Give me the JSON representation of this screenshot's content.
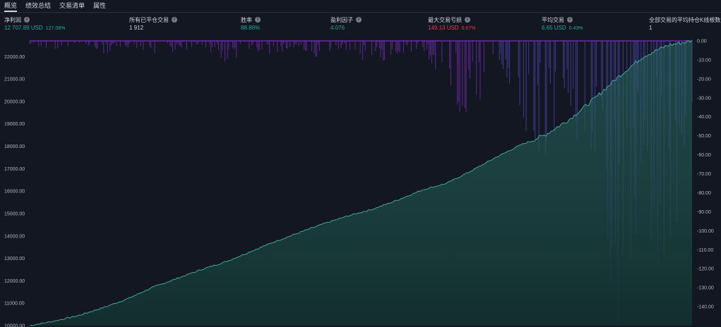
{
  "tabs": [
    {
      "label": "概览",
      "active": true
    },
    {
      "label": "绩效总结",
      "active": false
    },
    {
      "label": "交易清单",
      "active": false
    },
    {
      "label": "属性",
      "active": false
    }
  ],
  "stats": {
    "net_profit": {
      "label": "净利润",
      "value": "12 707.89 USD",
      "pct": "127.08%"
    },
    "closed_trades": {
      "label": "所有已平仓交易",
      "value": "1 912"
    },
    "win_rate": {
      "label": "胜率",
      "value": "88.86%"
    },
    "profit_factor": {
      "label": "盈利因子",
      "value": "4.076"
    },
    "max_drawdown": {
      "label": "最大交易亏损",
      "value": "149.13 USD",
      "pct": "0.67%"
    },
    "avg_trade": {
      "label": "平均交易",
      "value": "6.65 USD",
      "pct": "0.43%"
    },
    "avg_bars": {
      "label": "全部交易的平均持仓K线根数",
      "value": "1"
    }
  },
  "colors": {
    "background": "#131722",
    "equity_line": "#3fa79a",
    "equity_fill": "#1f4a47",
    "drawdown": "#6a2aa6",
    "green": "#26a69a",
    "red": "#f23645"
  },
  "chart_data": {
    "type": "area",
    "left_axis": {
      "ticks": [
        "22000.00",
        "21000.00",
        "20000.00",
        "19000.00",
        "18000.00",
        "17000.00",
        "16000.00",
        "15000.00",
        "14000.00",
        "13000.00",
        "12000.00",
        "11000.00",
        "10000.00"
      ],
      "ylim": [
        10000,
        22700
      ]
    },
    "right_axis": {
      "ticks": [
        "0.00",
        "-10.00",
        "-20.00",
        "-30.00",
        "-40.00",
        "-50.00",
        "-60.00",
        "-70.00",
        "-80.00",
        "-90.00",
        "-100.00",
        "-110.00",
        "-120.00",
        "-130.00",
        "-140.00"
      ],
      "ylim": [
        -150,
        0
      ]
    },
    "series": [
      {
        "values": [
          10000,
          10200,
          10450,
          10800,
          11200,
          11700,
          12100,
          12500,
          12850,
          13300,
          13750,
          14150,
          14550,
          14900,
          15200,
          15600,
          16050,
          16350,
          16900,
          17500,
          18050,
          18500,
          19200,
          20100,
          21100,
          22000,
          22500,
          22700
        ]
      },
      {
        "values": [
          -2,
          -4,
          -1,
          -6,
          -3,
          -8,
          -5,
          -2,
          -10,
          -4,
          -7,
          -3,
          -9,
          -5,
          -12,
          -6,
          -4,
          -20,
          -45,
          -8,
          -35,
          -60,
          -25,
          -90,
          -140,
          -70,
          -120,
          -30
        ]
      }
    ]
  }
}
